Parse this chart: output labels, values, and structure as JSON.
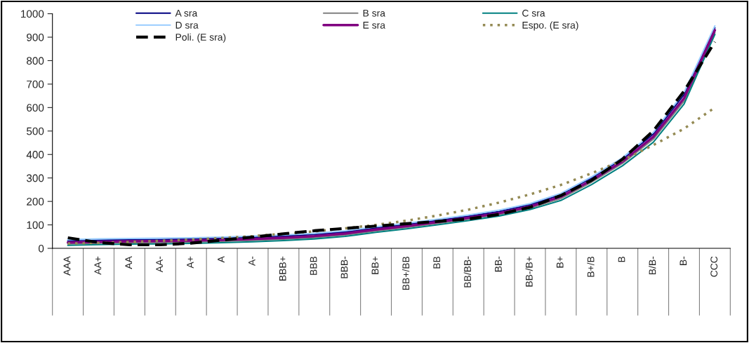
{
  "chart_data": {
    "type": "line",
    "categories": [
      "AAA",
      "AA+",
      "AA",
      "AA-",
      "A+",
      "A",
      "A-",
      "BBB+",
      "BBB",
      "BBB-",
      "BB+",
      "BB+/BB",
      "BB",
      "BB/BB-",
      "BB-",
      "BB-/B+",
      "B+",
      "B+/B",
      "B",
      "B/B-",
      "B-",
      "CCC"
    ],
    "series": [
      {
        "name": "A sra",
        "color": "#000080",
        "values": [
          32,
          35,
          37,
          38,
          40,
          43,
          47,
          52,
          59,
          70,
          87,
          102,
          119,
          137,
          157,
          186,
          229,
          300,
          380,
          487,
          655,
          940
        ]
      },
      {
        "name": "B sra",
        "color": "#808080",
        "values": [
          19,
          22,
          24,
          25,
          27,
          30,
          34,
          39,
          46,
          57,
          74,
          89,
          106,
          124,
          144,
          171,
          212,
          282,
          362,
          465,
          628,
          920
        ]
      },
      {
        "name": "C sra",
        "color": "#008080",
        "values": [
          13,
          16,
          18,
          19,
          21,
          24,
          28,
          33,
          40,
          51,
          68,
          83,
          100,
          118,
          138,
          165,
          204,
          272,
          352,
          452,
          615,
          912
        ]
      },
      {
        "name": "D sra",
        "color": "#99ccff",
        "values": [
          37,
          40,
          42,
          43,
          45,
          48,
          52,
          57,
          64,
          75,
          92,
          107,
          124,
          142,
          163,
          191,
          234,
          305,
          386,
          494,
          665,
          948
        ]
      },
      {
        "name": "E sra",
        "color": "#800080",
        "values": [
          25,
          28,
          30,
          31,
          33,
          36,
          40,
          45,
          52,
          63,
          80,
          95,
          112,
          130,
          150,
          178,
          220,
          290,
          370,
          475,
          640,
          930
        ]
      },
      {
        "name": "Espo. (E sra)",
        "color": "#948a54",
        "line_style": "dotted",
        "values": [
          20,
          23,
          27,
          32,
          37,
          44,
          52,
          62,
          72,
          85,
          100,
          118,
          140,
          165,
          195,
          230,
          270,
          320,
          375,
          440,
          510,
          600
        ]
      },
      {
        "name": "Poli. (E sra)",
        "color": "#000000",
        "line_style": "dashed",
        "values": [
          45,
          25,
          15,
          15,
          22,
          35,
          48,
          62,
          75,
          85,
          95,
          105,
          115,
          125,
          145,
          175,
          225,
          290,
          380,
          500,
          670,
          880
        ]
      }
    ],
    "ylim": [
      0,
      1000
    ],
    "yticks": [
      0,
      100,
      200,
      300,
      400,
      500,
      600,
      700,
      800,
      900,
      1000
    ],
    "grid": false,
    "legend": "top"
  }
}
